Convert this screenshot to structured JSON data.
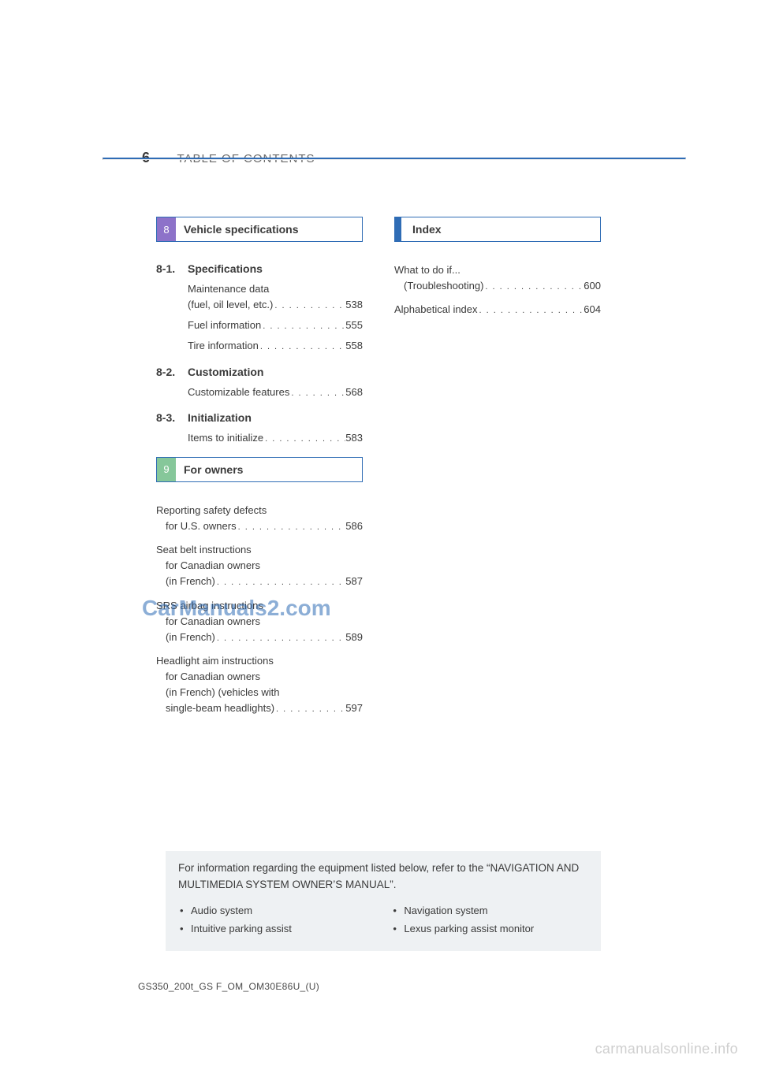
{
  "colors": {
    "rule": "#2f6cb5",
    "tab8": "#8d72c9",
    "tab9": "#86c79a",
    "indexTab": "#2f6cb5",
    "infoBg": "#eef1f3",
    "text": "#3a3a3a",
    "headerText": "#6a6a6a",
    "watermark": "#2f6cb5",
    "bottomWatermark": "#cfcfcf"
  },
  "header": {
    "page_number": "6",
    "title": "TABLE OF CONTENTS"
  },
  "left": {
    "section8": {
      "tab": "8",
      "title": "Vehicle specifications",
      "groups": [
        {
          "num": "8-1.",
          "heading": "Specifications",
          "entries": [
            {
              "lines": [
                "Maintenance data",
                "  (fuel, oil level, etc.)"
              ],
              "page": "538"
            },
            {
              "lines": [
                "Fuel information"
              ],
              "page": "555"
            },
            {
              "lines": [
                "Tire information"
              ],
              "page": "558"
            }
          ]
        },
        {
          "num": "8-2.",
          "heading": "Customization",
          "entries": [
            {
              "lines": [
                "Customizable features"
              ],
              "page": "568"
            }
          ]
        },
        {
          "num": "8-3.",
          "heading": "Initialization",
          "entries": [
            {
              "lines": [
                "Items to initialize"
              ],
              "page": "583"
            }
          ]
        }
      ]
    },
    "section9": {
      "tab": "9",
      "title": "For owners",
      "entries": [
        {
          "lines": [
            "Reporting safety defects",
            "for U.S. owners"
          ],
          "page": "586"
        },
        {
          "lines": [
            "Seat belt instructions",
            "for Canadian owners",
            "(in French)"
          ],
          "page": "587"
        },
        {
          "lines": [
            "SRS airbag instructions",
            "for Canadian owners",
            "(in French)"
          ],
          "page": "589"
        },
        {
          "lines": [
            "Headlight aim instructions",
            "for Canadian owners",
            "(in French) (vehicles with",
            "single-beam headlights)"
          ],
          "page": "597"
        }
      ]
    }
  },
  "right": {
    "index": {
      "title": "Index",
      "entries": [
        {
          "lines": [
            "What to do if...",
            "(Troubleshooting)"
          ],
          "page": "600"
        },
        {
          "lines": [
            "Alphabetical index"
          ],
          "page": "604"
        }
      ]
    }
  },
  "info_box": {
    "text": "For information regarding the equipment listed below, refer to the “NAVIGATION AND MULTIMEDIA SYSTEM OWNER’S MANUAL”.",
    "left_bullets": [
      "Audio system",
      "Intuitive parking assist"
    ],
    "right_bullets": [
      "Navigation system",
      "Lexus parking assist monitor"
    ]
  },
  "doc_code": "GS350_200t_GS F_OM_OM30E86U_(U)",
  "watermarks": {
    "center": "CarManuals2.com",
    "bottom": "carmanualsonline.info"
  }
}
